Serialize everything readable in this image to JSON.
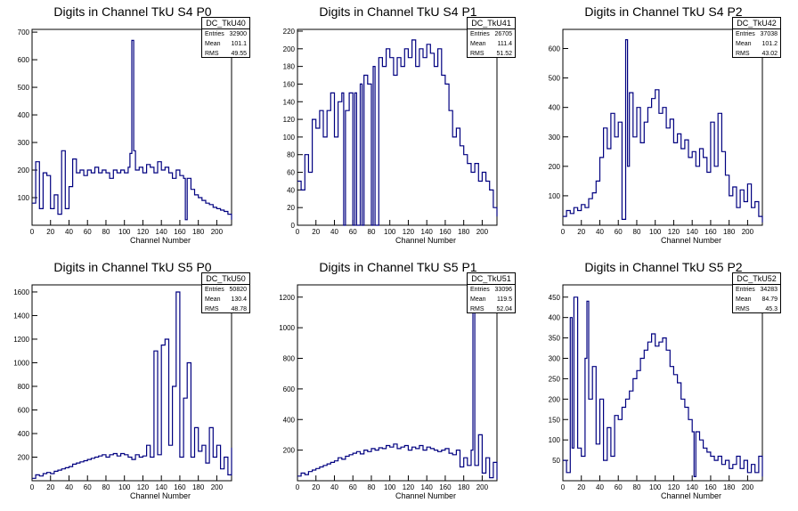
{
  "chart_data": [
    {
      "type": "histogram",
      "title": "Digits in Channel TkU S4 P0",
      "xlabel": "Channel Number",
      "xlim": [
        0,
        216
      ],
      "ylim": [
        0,
        710
      ],
      "xticks": [
        0,
        20,
        40,
        60,
        80,
        100,
        120,
        140,
        160,
        180,
        200
      ],
      "yticks": [
        100,
        200,
        300,
        400,
        500,
        600,
        700
      ],
      "color": "#000080",
      "stats": {
        "name": "DC_TkU40",
        "entries": "32900",
        "mean": "101.1",
        "rms": "49.55"
      },
      "x": [
        0,
        4,
        8,
        12,
        16,
        20,
        24,
        28,
        32,
        36,
        40,
        44,
        48,
        52,
        56,
        60,
        64,
        68,
        72,
        76,
        80,
        84,
        88,
        92,
        96,
        100,
        104,
        106,
        108,
        110,
        112,
        116,
        120,
        124,
        128,
        132,
        136,
        140,
        144,
        148,
        152,
        156,
        160,
        164,
        166,
        168,
        172,
        176,
        180,
        184,
        188,
        192,
        196,
        200,
        204,
        208,
        212,
        216
      ],
      "values": [
        80,
        230,
        60,
        190,
        180,
        60,
        110,
        40,
        270,
        60,
        140,
        240,
        190,
        200,
        180,
        200,
        190,
        210,
        190,
        200,
        190,
        170,
        200,
        190,
        200,
        190,
        210,
        260,
        670,
        270,
        200,
        210,
        190,
        220,
        210,
        190,
        230,
        200,
        210,
        190,
        170,
        200,
        180,
        170,
        20,
        170,
        130,
        110,
        100,
        90,
        80,
        75,
        65,
        60,
        55,
        50,
        40,
        20
      ]
    },
    {
      "type": "histogram",
      "title": "Digits in Channel TkU S4 P1",
      "xlabel": "Channel Number",
      "xlim": [
        0,
        216
      ],
      "ylim": [
        0,
        222
      ],
      "xticks": [
        0,
        20,
        40,
        60,
        80,
        100,
        120,
        140,
        160,
        180,
        200
      ],
      "yticks": [
        0,
        20,
        40,
        60,
        80,
        100,
        120,
        140,
        160,
        180,
        200,
        220
      ],
      "color": "#000080",
      "stats": {
        "name": "DC_TkU41",
        "entries": "26705",
        "mean": "111.4",
        "rms": "51.52"
      },
      "x": [
        0,
        4,
        8,
        12,
        16,
        20,
        24,
        28,
        32,
        36,
        40,
        44,
        48,
        50,
        52,
        56,
        60,
        62,
        64,
        68,
        70,
        72,
        76,
        80,
        82,
        84,
        88,
        92,
        96,
        100,
        104,
        108,
        112,
        116,
        120,
        124,
        128,
        132,
        136,
        140,
        144,
        148,
        152,
        156,
        160,
        164,
        168,
        172,
        176,
        180,
        184,
        188,
        192,
        196,
        200,
        204,
        208,
        212,
        216
      ],
      "values": [
        50,
        40,
        80,
        60,
        120,
        110,
        130,
        100,
        130,
        150,
        100,
        140,
        150,
        0,
        130,
        150,
        0,
        150,
        0,
        160,
        0,
        170,
        160,
        0,
        180,
        0,
        190,
        180,
        200,
        190,
        170,
        190,
        180,
        200,
        190,
        210,
        180,
        200,
        190,
        205,
        195,
        180,
        200,
        170,
        160,
        130,
        100,
        110,
        90,
        80,
        70,
        60,
        70,
        50,
        60,
        50,
        40,
        20,
        10
      ]
    },
    {
      "type": "histogram",
      "title": "Digits in Channel TkU S4 P2",
      "xlabel": "Channel Number",
      "xlim": [
        0,
        216
      ],
      "ylim": [
        0,
        665
      ],
      "xticks": [
        0,
        20,
        40,
        60,
        80,
        100,
        120,
        140,
        160,
        180,
        200
      ],
      "yticks": [
        100,
        200,
        300,
        400,
        500,
        600
      ],
      "color": "#000080",
      "stats": {
        "name": "DC_TkU42",
        "entries": "37038",
        "mean": "101.2",
        "rms": "43.02"
      },
      "x": [
        0,
        4,
        8,
        12,
        16,
        20,
        24,
        28,
        32,
        36,
        40,
        44,
        48,
        52,
        56,
        60,
        64,
        68,
        70,
        72,
        76,
        80,
        84,
        88,
        92,
        96,
        100,
        104,
        108,
        112,
        116,
        120,
        124,
        128,
        132,
        136,
        140,
        144,
        148,
        152,
        156,
        160,
        164,
        168,
        172,
        176,
        180,
        184,
        188,
        192,
        196,
        200,
        204,
        208,
        212,
        216
      ],
      "values": [
        30,
        50,
        40,
        60,
        50,
        70,
        60,
        90,
        110,
        150,
        230,
        330,
        260,
        380,
        300,
        350,
        20,
        630,
        200,
        450,
        300,
        400,
        280,
        350,
        400,
        430,
        460,
        380,
        400,
        330,
        360,
        280,
        310,
        260,
        290,
        230,
        250,
        200,
        260,
        230,
        180,
        350,
        200,
        380,
        250,
        170,
        100,
        130,
        60,
        120,
        80,
        140,
        60,
        80,
        30,
        10
      ]
    },
    {
      "type": "histogram",
      "title": "Digits in Channel TkU S5 P0",
      "xlabel": "Channel Number",
      "xlim": [
        0,
        216
      ],
      "ylim": [
        0,
        1660
      ],
      "xticks": [
        0,
        20,
        40,
        60,
        80,
        100,
        120,
        140,
        160,
        180,
        200
      ],
      "yticks": [
        200,
        400,
        600,
        800,
        1000,
        1200,
        1400,
        1600
      ],
      "color": "#000080",
      "stats": {
        "name": "DC_TkU50",
        "entries": "50820",
        "mean": "130.4",
        "rms": "48.78"
      },
      "x": [
        0,
        4,
        8,
        12,
        16,
        20,
        24,
        28,
        32,
        36,
        40,
        44,
        48,
        52,
        56,
        60,
        64,
        68,
        72,
        76,
        80,
        84,
        88,
        92,
        96,
        100,
        104,
        108,
        112,
        116,
        120,
        124,
        128,
        132,
        136,
        140,
        144,
        148,
        152,
        156,
        160,
        164,
        168,
        172,
        176,
        180,
        184,
        188,
        192,
        196,
        200,
        204,
        208,
        212,
        216
      ],
      "values": [
        20,
        50,
        40,
        60,
        70,
        60,
        80,
        90,
        100,
        110,
        120,
        140,
        150,
        160,
        170,
        180,
        190,
        200,
        210,
        220,
        200,
        220,
        230,
        210,
        230,
        220,
        200,
        180,
        220,
        200,
        210,
        300,
        200,
        1100,
        220,
        1150,
        1200,
        300,
        800,
        1600,
        200,
        700,
        1000,
        200,
        450,
        250,
        300,
        150,
        450,
        200,
        300,
        100,
        200,
        50,
        280
      ]
    },
    {
      "type": "histogram",
      "title": "Digits in Channel TkU S5 P1",
      "xlabel": "Channel Number",
      "xlim": [
        0,
        216
      ],
      "ylim": [
        0,
        1280
      ],
      "xticks": [
        0,
        20,
        40,
        60,
        80,
        100,
        120,
        140,
        160,
        180,
        200
      ],
      "yticks": [
        200,
        400,
        600,
        800,
        1000,
        1200
      ],
      "color": "#000080",
      "stats": {
        "name": "DC_TkU51",
        "entries": "33096",
        "mean": "119.5",
        "rms": "52.04"
      },
      "x": [
        0,
        4,
        8,
        12,
        16,
        20,
        24,
        28,
        32,
        36,
        40,
        44,
        48,
        52,
        56,
        60,
        64,
        68,
        72,
        76,
        80,
        84,
        88,
        92,
        96,
        100,
        104,
        108,
        112,
        116,
        120,
        124,
        128,
        132,
        136,
        140,
        144,
        148,
        152,
        156,
        160,
        164,
        168,
        172,
        176,
        180,
        184,
        188,
        190,
        192,
        196,
        200,
        204,
        208,
        212,
        216
      ],
      "values": [
        30,
        50,
        40,
        60,
        70,
        80,
        90,
        100,
        110,
        120,
        130,
        150,
        140,
        160,
        170,
        180,
        190,
        175,
        200,
        190,
        210,
        200,
        215,
        210,
        230,
        220,
        240,
        210,
        220,
        230,
        200,
        220,
        210,
        230,
        200,
        220,
        210,
        200,
        190,
        200,
        210,
        180,
        170,
        200,
        90,
        150,
        100,
        200,
        1120,
        100,
        300,
        50,
        150,
        20,
        120,
        10
      ]
    },
    {
      "type": "histogram",
      "title": "Digits in Channel TkU S5 P2",
      "xlabel": "Channel Number",
      "xlim": [
        0,
        216
      ],
      "ylim": [
        0,
        480
      ],
      "xticks": [
        0,
        20,
        40,
        60,
        80,
        100,
        120,
        140,
        160,
        180,
        200
      ],
      "yticks": [
        50,
        100,
        150,
        200,
        250,
        300,
        350,
        400,
        450
      ],
      "color": "#000080",
      "stats": {
        "name": "DC_TkU52",
        "entries": "34283",
        "mean": "84.79",
        "rms": "45.3"
      },
      "x": [
        0,
        4,
        8,
        10,
        12,
        16,
        20,
        24,
        26,
        28,
        32,
        36,
        40,
        44,
        48,
        52,
        56,
        60,
        64,
        68,
        72,
        76,
        80,
        84,
        88,
        92,
        96,
        100,
        104,
        108,
        112,
        116,
        120,
        124,
        128,
        132,
        136,
        140,
        142,
        144,
        148,
        152,
        156,
        160,
        164,
        168,
        172,
        176,
        180,
        184,
        188,
        192,
        196,
        200,
        204,
        208,
        212,
        216
      ],
      "values": [
        50,
        20,
        400,
        80,
        450,
        80,
        60,
        300,
        440,
        200,
        280,
        90,
        200,
        50,
        130,
        60,
        160,
        150,
        180,
        200,
        220,
        250,
        270,
        300,
        320,
        340,
        360,
        330,
        340,
        350,
        320,
        280,
        260,
        240,
        200,
        180,
        150,
        120,
        10,
        120,
        100,
        80,
        70,
        60,
        50,
        60,
        40,
        50,
        30,
        40,
        60,
        30,
        50,
        20,
        40,
        20,
        60,
        10
      ]
    }
  ]
}
